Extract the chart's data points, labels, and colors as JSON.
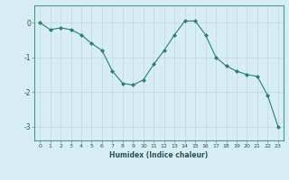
{
  "x": [
    0,
    1,
    2,
    3,
    4,
    5,
    6,
    7,
    8,
    9,
    10,
    11,
    12,
    13,
    14,
    15,
    16,
    17,
    18,
    19,
    20,
    21,
    22,
    23
  ],
  "y": [
    0.0,
    -0.2,
    -0.15,
    -0.2,
    -0.35,
    -0.6,
    -0.8,
    -1.4,
    -1.75,
    -1.8,
    -1.65,
    -1.2,
    -0.8,
    -0.35,
    0.05,
    0.05,
    -0.35,
    -1.0,
    -1.25,
    -1.4,
    -1.5,
    -1.55,
    -2.1,
    -3.0
  ],
  "line_color": "#2e7d6e",
  "marker": "D",
  "marker_size": 2,
  "bg_color": "#d6eef2",
  "grid_color": "#c0d8dc",
  "xlabel": "Humidex (Indice chaleur)",
  "xlim": [
    -0.5,
    23.5
  ],
  "ylim": [
    -3.4,
    0.5
  ],
  "yticks": [
    0,
    -1,
    -2,
    -3
  ],
  "xticks": [
    0,
    1,
    2,
    3,
    4,
    5,
    6,
    7,
    8,
    9,
    10,
    11,
    12,
    13,
    14,
    15,
    16,
    17,
    18,
    19,
    20,
    21,
    22,
    23
  ]
}
